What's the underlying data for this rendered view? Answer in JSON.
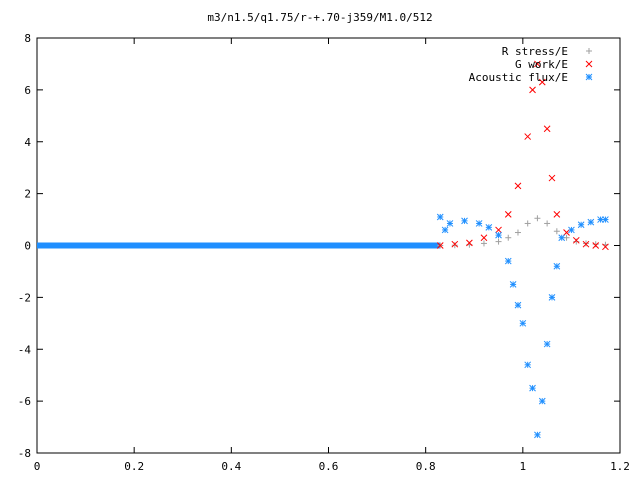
{
  "chart_data": {
    "type": "scatter",
    "title": "m3/n1.5/q1.75/r-+.70-j359/M1.0/512",
    "xlabel": "",
    "ylabel": "",
    "xlim": [
      0,
      1.2
    ],
    "ylim": [
      -8,
      8
    ],
    "x_ticks": [
      "0",
      "0.2",
      "0.4",
      "0.6",
      "0.8",
      "1",
      "1.2"
    ],
    "y_ticks": [
      "8",
      "6",
      "4",
      "2",
      "0",
      "-2",
      "-4",
      "-6",
      "-8"
    ],
    "legend_position": "top-right",
    "grid": false,
    "series": [
      {
        "name": "R stress/E",
        "marker": "plus",
        "color": "#a0a0a0",
        "points": [
          [
            0.83,
            0.0
          ],
          [
            0.86,
            0.01
          ],
          [
            0.89,
            0.03
          ],
          [
            0.92,
            0.08
          ],
          [
            0.95,
            0.15
          ],
          [
            0.97,
            0.3
          ],
          [
            0.99,
            0.5
          ],
          [
            1.01,
            0.85
          ],
          [
            1.03,
            1.05
          ],
          [
            1.05,
            0.85
          ],
          [
            1.07,
            0.55
          ],
          [
            1.09,
            0.3
          ],
          [
            1.11,
            0.15
          ],
          [
            1.13,
            0.08
          ],
          [
            1.15,
            0.05
          ],
          [
            1.17,
            0.03
          ]
        ]
      },
      {
        "name": "G work/E",
        "marker": "cross",
        "color": "#ff0000",
        "points": [
          [
            0.83,
            0.0
          ],
          [
            0.86,
            0.05
          ],
          [
            0.89,
            0.1
          ],
          [
            0.92,
            0.3
          ],
          [
            0.95,
            0.6
          ],
          [
            0.97,
            1.2
          ],
          [
            0.99,
            2.3
          ],
          [
            1.01,
            4.2
          ],
          [
            1.02,
            6.0
          ],
          [
            1.03,
            7.0
          ],
          [
            1.04,
            6.3
          ],
          [
            1.05,
            4.5
          ],
          [
            1.06,
            2.6
          ],
          [
            1.07,
            1.2
          ],
          [
            1.09,
            0.5
          ],
          [
            1.11,
            0.2
          ],
          [
            1.13,
            0.05
          ],
          [
            1.15,
            0.0
          ],
          [
            1.17,
            -0.05
          ]
        ]
      },
      {
        "name": "Acoustic flux/E",
        "marker": "star",
        "color": "#1f8fff",
        "points": [
          [
            0.83,
            1.1
          ],
          [
            0.84,
            0.6
          ],
          [
            0.85,
            0.85
          ],
          [
            0.88,
            0.95
          ],
          [
            0.91,
            0.85
          ],
          [
            0.93,
            0.7
          ],
          [
            0.95,
            0.4
          ],
          [
            0.97,
            -0.6
          ],
          [
            0.98,
            -1.5
          ],
          [
            0.99,
            -2.3
          ],
          [
            1.0,
            -3.0
          ],
          [
            1.01,
            -4.6
          ],
          [
            1.02,
            -5.5
          ],
          [
            1.03,
            -7.3
          ],
          [
            1.04,
            -6.0
          ],
          [
            1.05,
            -3.8
          ],
          [
            1.06,
            -2.0
          ],
          [
            1.07,
            -0.8
          ],
          [
            1.08,
            0.3
          ],
          [
            1.1,
            0.6
          ],
          [
            1.12,
            0.8
          ],
          [
            1.14,
            0.9
          ],
          [
            1.16,
            1.0
          ],
          [
            1.17,
            1.0
          ]
        ]
      }
    ],
    "baseline": {
      "xlim": [
        0,
        0.83
      ],
      "y": 0
    }
  }
}
